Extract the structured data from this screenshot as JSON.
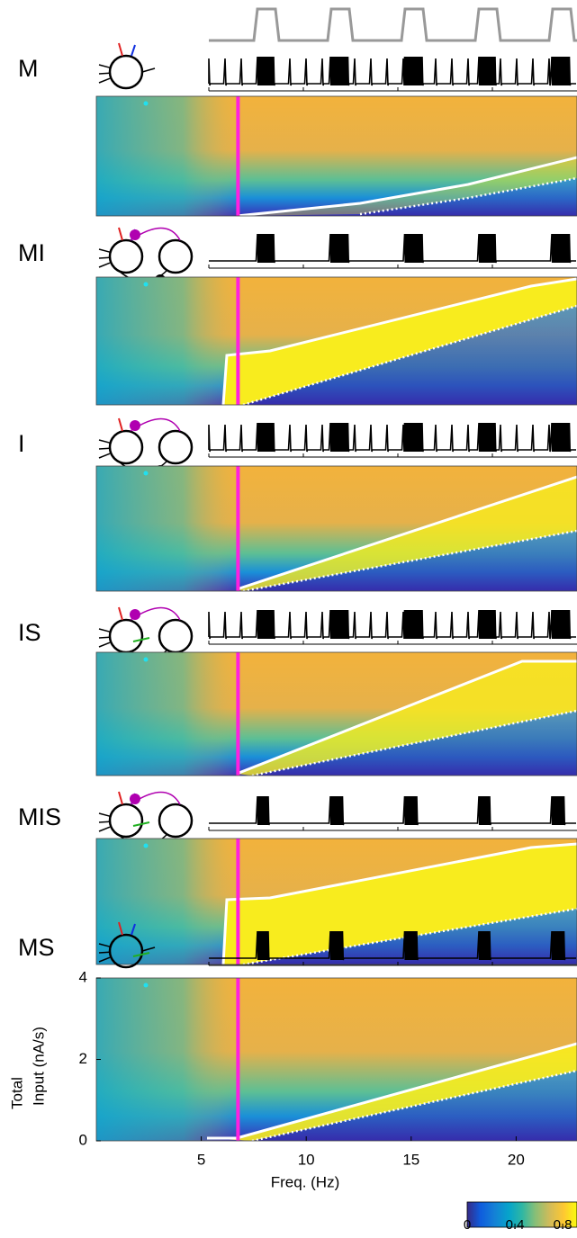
{
  "chart_data": {
    "type": "heatmap",
    "panels": [
      {
        "label": "M"
      },
      {
        "label": "MI"
      },
      {
        "label": "I"
      },
      {
        "label": "IS"
      },
      {
        "label": "MIS"
      },
      {
        "label": "MS"
      }
    ],
    "ylabel": [
      "Total",
      "Input (nA/s)"
    ],
    "xlabel": "Freq. (Hz)",
    "xlim": [
      0,
      22.9
    ],
    "xticks": [
      5,
      10,
      15,
      20
    ],
    "ylim": [
      0,
      4
    ],
    "yticks": [
      0,
      2,
      4
    ],
    "highlight_x": 6.75,
    "colorbar": {
      "lim": [
        0,
        0.92
      ],
      "ticks": [
        0,
        0.4,
        0.8
      ]
    }
  }
}
